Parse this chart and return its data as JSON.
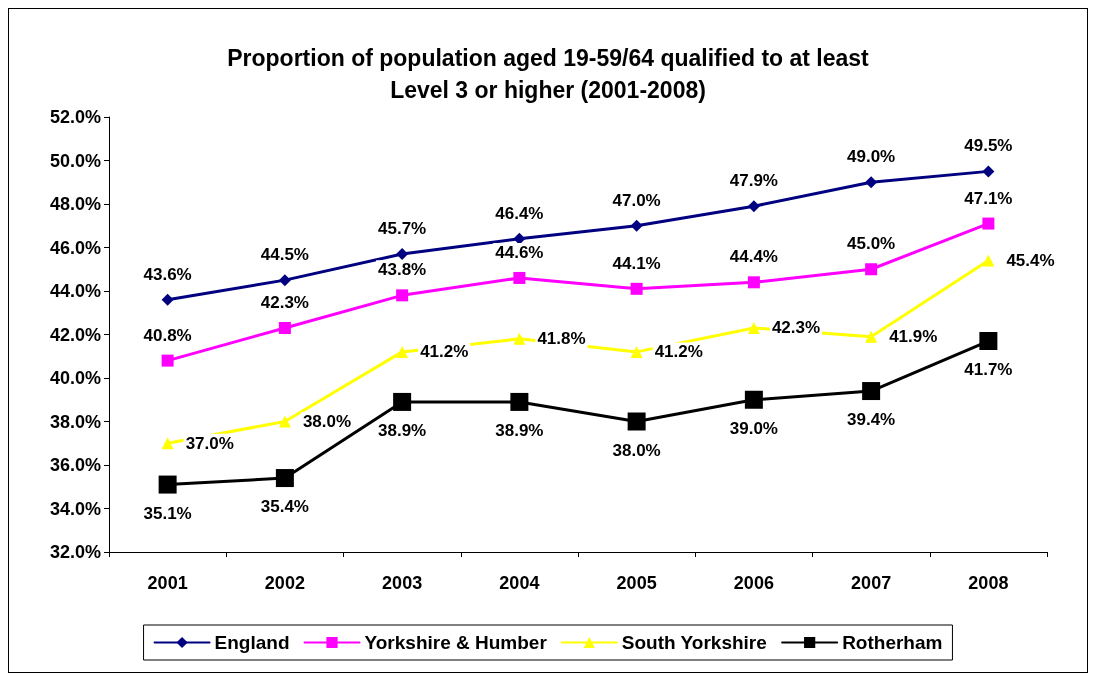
{
  "chart_data": {
    "type": "line",
    "title": "Proportion of population aged 19-59/64 qualified to at least\nLevel 3 or higher (2001-2008)",
    "categories": [
      "2001",
      "2002",
      "2003",
      "2004",
      "2005",
      "2006",
      "2007",
      "2008"
    ],
    "series": [
      {
        "name": "England",
        "color": "#000080",
        "marker": "diamond",
        "values": [
          43.6,
          44.5,
          45.7,
          46.4,
          47.0,
          47.9,
          49.0,
          49.5
        ],
        "value_labels": [
          "43.6%",
          "44.5%",
          "45.7%",
          "46.4%",
          "47.0%",
          "47.9%",
          "49.0%",
          "49.5%"
        ]
      },
      {
        "name": "Yorkshire & Humber",
        "color": "#ff00ff",
        "marker": "square",
        "values": [
          40.8,
          42.3,
          43.8,
          44.6,
          44.1,
          44.4,
          45.0,
          47.1
        ],
        "value_labels": [
          "40.8%",
          "42.3%",
          "43.8%",
          "44.6%",
          "44.1%",
          "44.4%",
          "45.0%",
          "47.1%"
        ]
      },
      {
        "name": "South Yorkshire",
        "color": "#ffff00",
        "marker": "triangle",
        "values": [
          37.0,
          38.0,
          41.2,
          41.8,
          41.2,
          42.3,
          41.9,
          45.4
        ],
        "value_labels": [
          "37.0%",
          "38.0%",
          "41.2%",
          "41.8%",
          "41.2%",
          "42.3%",
          "41.9%",
          "45.4%"
        ]
      },
      {
        "name": "Rotherham",
        "color": "#000000",
        "marker": "square",
        "values": [
          35.1,
          35.4,
          38.9,
          38.9,
          38.0,
          39.0,
          39.4,
          41.7
        ],
        "value_labels": [
          "35.1%",
          "35.4%",
          "38.9%",
          "38.9%",
          "38.0%",
          "39.0%",
          "39.4%",
          "41.7%"
        ]
      }
    ],
    "ylim": [
      32,
      52
    ],
    "yticks": [
      {
        "value": 32,
        "label": "32.0%"
      },
      {
        "value": 34,
        "label": "34.0%"
      },
      {
        "value": 36,
        "label": "36.0%"
      },
      {
        "value": 38,
        "label": "38.0%"
      },
      {
        "value": 40,
        "label": "40.0%"
      },
      {
        "value": 42,
        "label": "42.0%"
      },
      {
        "value": 44,
        "label": "44.0%"
      },
      {
        "value": 46,
        "label": "46.0%"
      },
      {
        "value": 48,
        "label": "48.0%"
      },
      {
        "value": 50,
        "label": "50.0%"
      },
      {
        "value": 52,
        "label": "52.0%"
      }
    ],
    "grid": false,
    "legend": "bottom",
    "line_style": "solid"
  }
}
